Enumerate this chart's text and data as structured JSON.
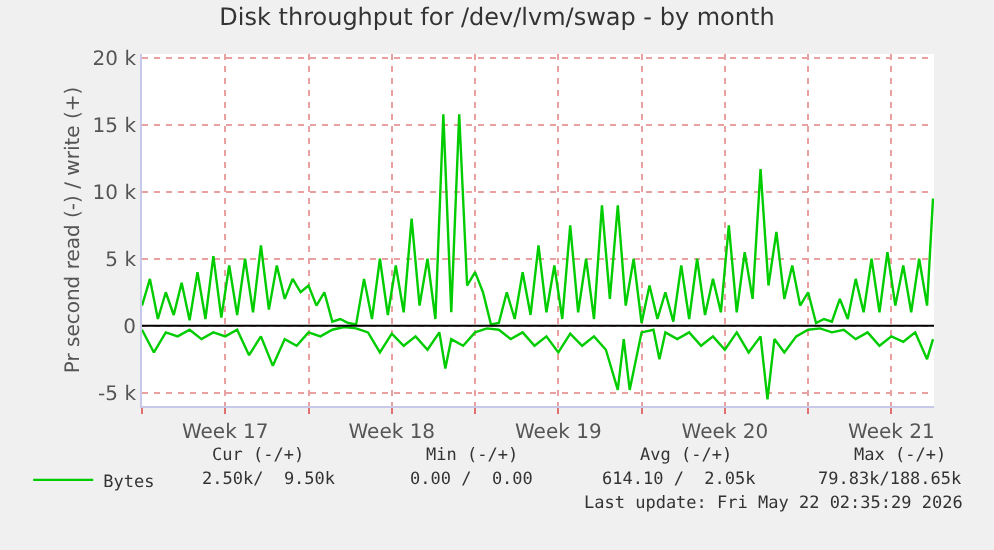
{
  "chart_data": {
    "type": "line",
    "title": "Disk throughput for /dev/lvm/swap - by month",
    "ylabel": "Pr second read (-) / write (+)",
    "xlim": [
      "2026-04-20",
      "2026-05-23T07:00"
    ],
    "xticks": [
      {
        "value": "2026-04-20",
        "label": null
      },
      {
        "value": "2026-04-23T12:00",
        "label": "Week 17"
      },
      {
        "value": "2026-04-27",
        "label": null
      },
      {
        "value": "2026-04-30T12:00",
        "label": "Week 18"
      },
      {
        "value": "2026-05-04",
        "label": null
      },
      {
        "value": "2026-05-07T12:00",
        "label": "Week 19"
      },
      {
        "value": "2026-05-11",
        "label": null
      },
      {
        "value": "2026-05-14T12:00",
        "label": "Week 20"
      },
      {
        "value": "2026-05-18",
        "label": null
      },
      {
        "value": "2026-05-21T12:00",
        "label": "Week 21"
      }
    ],
    "ylim": [
      -6000,
      20300
    ],
    "yticks": [
      {
        "value": -5000,
        "label": "-5 k"
      },
      0,
      {
        "value": 5000,
        "label": "5 k"
      },
      {
        "value": 10000,
        "label": "10 k"
      },
      {
        "value": 15000,
        "label": "15 k"
      },
      {
        "value": 20000,
        "label": "20 k"
      }
    ],
    "grid": true,
    "legend": "bottom left",
    "ref_lines": [
      {
        "axis": "y",
        "value": 0,
        "color": "#000000"
      }
    ],
    "series": [
      {
        "name": "Bytes",
        "color": "#00cc00",
        "x": [
          "2026-04-20T00:00",
          "2026-04-20T08:00",
          "2026-04-20T16:00",
          "2026-04-21T00:00",
          "2026-04-21T08:00",
          "2026-04-21T16:00",
          "2026-04-22T00:00",
          "2026-04-22T08:00",
          "2026-04-22T16:00",
          "2026-04-23T00:00",
          "2026-04-23T08:00",
          "2026-04-23T16:00",
          "2026-04-24T00:00",
          "2026-04-24T08:00",
          "2026-04-24T16:00",
          "2026-04-25T00:00",
          "2026-04-25T08:00",
          "2026-04-25T16:00",
          "2026-04-26T00:00",
          "2026-04-26T08:00",
          "2026-04-26T16:00",
          "2026-04-27T00:00",
          "2026-04-27T08:00",
          "2026-04-27T16:00",
          "2026-04-28T00:00",
          "2026-04-28T08:00",
          "2026-04-28T16:00",
          "2026-04-29T00:00",
          "2026-04-29T08:00",
          "2026-04-29T16:00",
          "2026-04-30T00:00",
          "2026-04-30T08:00",
          "2026-04-30T16:00",
          "2026-05-01T00:00",
          "2026-05-01T08:00",
          "2026-05-01T16:00",
          "2026-05-02T00:00",
          "2026-05-02T08:00",
          "2026-05-02T16:00",
          "2026-05-03T00:00",
          "2026-05-03T08:00",
          "2026-05-03T16:00",
          "2026-05-04T00:00",
          "2026-05-04T08:00",
          "2026-05-04T16:00",
          "2026-05-05T00:00",
          "2026-05-05T08:00",
          "2026-05-05T16:00",
          "2026-05-06T00:00",
          "2026-05-06T08:00",
          "2026-05-06T16:00",
          "2026-05-07T00:00",
          "2026-05-07T08:00",
          "2026-05-07T16:00",
          "2026-05-08T00:00",
          "2026-05-08T08:00",
          "2026-05-08T16:00",
          "2026-05-09T00:00",
          "2026-05-09T08:00",
          "2026-05-09T16:00",
          "2026-05-10T00:00",
          "2026-05-10T08:00",
          "2026-05-10T16:00",
          "2026-05-11T00:00",
          "2026-05-11T08:00",
          "2026-05-11T16:00",
          "2026-05-12T00:00",
          "2026-05-12T08:00",
          "2026-05-12T16:00",
          "2026-05-13T00:00",
          "2026-05-13T08:00",
          "2026-05-13T16:00",
          "2026-05-14T00:00",
          "2026-05-14T08:00",
          "2026-05-14T16:00",
          "2026-05-15T00:00",
          "2026-05-15T08:00",
          "2026-05-15T16:00",
          "2026-05-16T00:00",
          "2026-05-16T08:00",
          "2026-05-16T16:00",
          "2026-05-17T00:00",
          "2026-05-17T08:00",
          "2026-05-17T16:00",
          "2026-05-18T00:00",
          "2026-05-18T08:00",
          "2026-05-18T16:00",
          "2026-05-19T00:00",
          "2026-05-19T08:00",
          "2026-05-19T16:00",
          "2026-05-20T00:00",
          "2026-05-20T08:00",
          "2026-05-20T16:00",
          "2026-05-21T00:00",
          "2026-05-21T08:00",
          "2026-05-21T16:00",
          "2026-05-22T00:00",
          "2026-05-22T08:00",
          "2026-05-22T16:00",
          "2026-05-23T00:00",
          "2026-05-23T06:00"
        ],
        "values": [
          1500,
          3500,
          500,
          2500,
          800,
          3200,
          400,
          4000,
          500,
          5200,
          600,
          4500,
          800,
          5000,
          1000,
          6000,
          1200,
          4500,
          2000,
          3500,
          2500,
          3000,
          1500,
          2500,
          300,
          500,
          200,
          100,
          3500,
          500,
          5000,
          800,
          4500,
          1000,
          8000,
          1500,
          5000,
          500,
          15800,
          1000,
          15800,
          3000,
          4000,
          2500,
          100,
          200,
          2500,
          500,
          4000,
          800,
          6000,
          1000,
          4500,
          500,
          7500,
          1000,
          5000,
          500,
          9000,
          2000,
          9000,
          1500,
          5000,
          200,
          3000,
          500,
          2500,
          300,
          4500,
          500,
          5000,
          800,
          3500,
          1000,
          7500,
          1000,
          5500,
          2000,
          11700,
          3000,
          7000,
          2000,
          4500,
          1500,
          2500,
          200,
          500,
          300,
          2000,
          500,
          3500,
          1000,
          5000,
          1000,
          5500,
          1500,
          4500,
          1000,
          5000,
          1500,
          9500
        ]
      },
      {
        "color": "#00cc00",
        "x": [
          "2026-04-20T00:00",
          "2026-04-20T12:00",
          "2026-04-21T00:00",
          "2026-04-21T12:00",
          "2026-04-22T00:00",
          "2026-04-22T12:00",
          "2026-04-23T00:00",
          "2026-04-23T12:00",
          "2026-04-24T00:00",
          "2026-04-24T12:00",
          "2026-04-25T00:00",
          "2026-04-25T12:00",
          "2026-04-26T00:00",
          "2026-04-26T12:00",
          "2026-04-27T00:00",
          "2026-04-27T12:00",
          "2026-04-28T00:00",
          "2026-04-28T12:00",
          "2026-04-29T00:00",
          "2026-04-29T12:00",
          "2026-04-30T00:00",
          "2026-04-30T12:00",
          "2026-05-01T00:00",
          "2026-05-01T12:00",
          "2026-05-02T00:00",
          "2026-05-02T12:00",
          "2026-05-02T18:00",
          "2026-05-03T00:00",
          "2026-05-03T12:00",
          "2026-05-04T00:00",
          "2026-05-04T12:00",
          "2026-05-05T00:00",
          "2026-05-05T12:00",
          "2026-05-06T00:00",
          "2026-05-06T12:00",
          "2026-05-07T00:00",
          "2026-05-07T12:00",
          "2026-05-08T00:00",
          "2026-05-08T12:00",
          "2026-05-09T00:00",
          "2026-05-09T12:00",
          "2026-05-10T00:00",
          "2026-05-10T06:00",
          "2026-05-10T12:00",
          "2026-05-11T00:00",
          "2026-05-11T12:00",
          "2026-05-11T18:00",
          "2026-05-12T00:00",
          "2026-05-12T12:00",
          "2026-05-13T00:00",
          "2026-05-13T12:00",
          "2026-05-14T00:00",
          "2026-05-14T12:00",
          "2026-05-15T00:00",
          "2026-05-15T12:00",
          "2026-05-16T00:00",
          "2026-05-16T07:00",
          "2026-05-16T14:00",
          "2026-05-17T00:00",
          "2026-05-17T12:00",
          "2026-05-18T00:00",
          "2026-05-18T12:00",
          "2026-05-19T00:00",
          "2026-05-19T12:00",
          "2026-05-20T00:00",
          "2026-05-20T12:00",
          "2026-05-21T00:00",
          "2026-05-21T12:00",
          "2026-05-22T00:00",
          "2026-05-22T12:00",
          "2026-05-23T00:00",
          "2026-05-23T06:00"
        ],
        "values": [
          -300,
          -2000,
          -500,
          -800,
          -300,
          -1000,
          -500,
          -800,
          -300,
          -2200,
          -800,
          -3000,
          -1000,
          -1500,
          -500,
          -800,
          -300,
          -100,
          -200,
          -500,
          -2000,
          -600,
          -1500,
          -800,
          -1800,
          -500,
          -3200,
          -1000,
          -1500,
          -500,
          -200,
          -300,
          -1000,
          -500,
          -1500,
          -800,
          -2000,
          -600,
          -1500,
          -800,
          -1800,
          -4800,
          -1000,
          -4800,
          -500,
          -300,
          -2500,
          -500,
          -1000,
          -500,
          -1500,
          -800,
          -1800,
          -500,
          -2000,
          -800,
          -5500,
          -1000,
          -2000,
          -800,
          -300,
          -200,
          -500,
          -300,
          -1000,
          -500,
          -1500,
          -800,
          -1200,
          -500,
          -2500,
          -1000
        ]
      }
    ],
    "annotations": [
      "Cur (-/+)",
      "Min (-/+)",
      "Avg (-/+)",
      "Max (-/+)",
      "2.50k/  9.50k",
      "0.00 /  0.00",
      "614.10 /  2.05k",
      "79.83k/188.65k",
      "Last update: Fri May 22 02:35:29 2026"
    ]
  }
}
